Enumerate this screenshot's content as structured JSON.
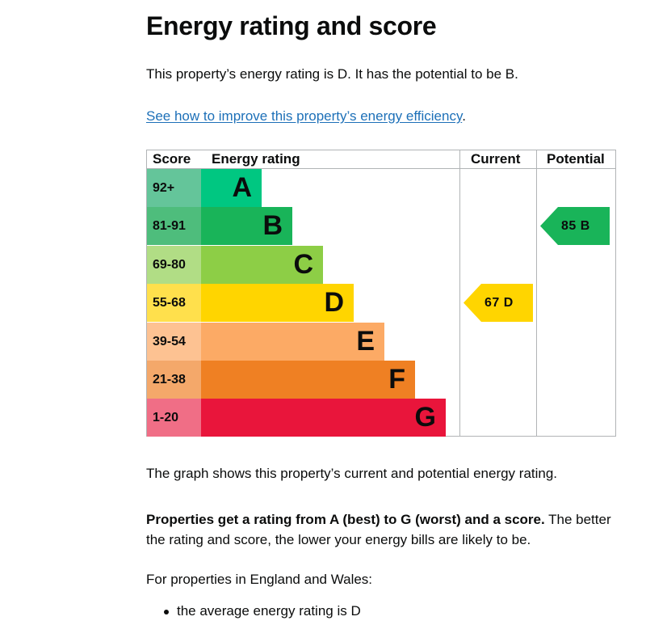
{
  "heading": "Energy rating and score",
  "intro": "This property’s energy rating is D. It has the potential to be B.",
  "improve_link": "See how to improve this property’s energy efficiency",
  "improve_link_suffix": ".",
  "table": {
    "headers": {
      "score": "Score",
      "rating": "Energy rating",
      "current": "Current",
      "potential": "Potential"
    },
    "bands": [
      {
        "score": "92+",
        "letter": "A",
        "color": "#00c781",
        "score_bg": "#64c59a"
      },
      {
        "score": "81-91",
        "letter": "B",
        "color": "#19b459",
        "score_bg": "#4ebd7c"
      },
      {
        "score": "69-80",
        "letter": "C",
        "color": "#8dce46",
        "score_bg": "#b1dd85"
      },
      {
        "score": "55-68",
        "letter": "D",
        "color": "#ffd500",
        "score_bg": "#ffe04c"
      },
      {
        "score": "39-54",
        "letter": "E",
        "color": "#fcaa65",
        "score_bg": "#fdc292"
      },
      {
        "score": "21-38",
        "letter": "F",
        "color": "#ef8023",
        "score_bg": "#f4a86a"
      },
      {
        "score": "1-20",
        "letter": "G",
        "color": "#e9153b",
        "score_bg": "#f06e86"
      }
    ],
    "current": {
      "label": "67 D",
      "band": "D",
      "color": "#ffd500"
    },
    "potential": {
      "label": "85 B",
      "band": "B",
      "color": "#19b459"
    }
  },
  "graph_text": "The graph shows this property’s current and potential energy rating.",
  "ratings_bold": "Properties get a rating from A (best) to G (worst) and a score.",
  "ratings_rest": " The better the rating and score, the lower your energy bills are likely to be.",
  "england_wales": "For properties in England and Wales:",
  "bullets": [
    "the average energy rating is D"
  ]
}
